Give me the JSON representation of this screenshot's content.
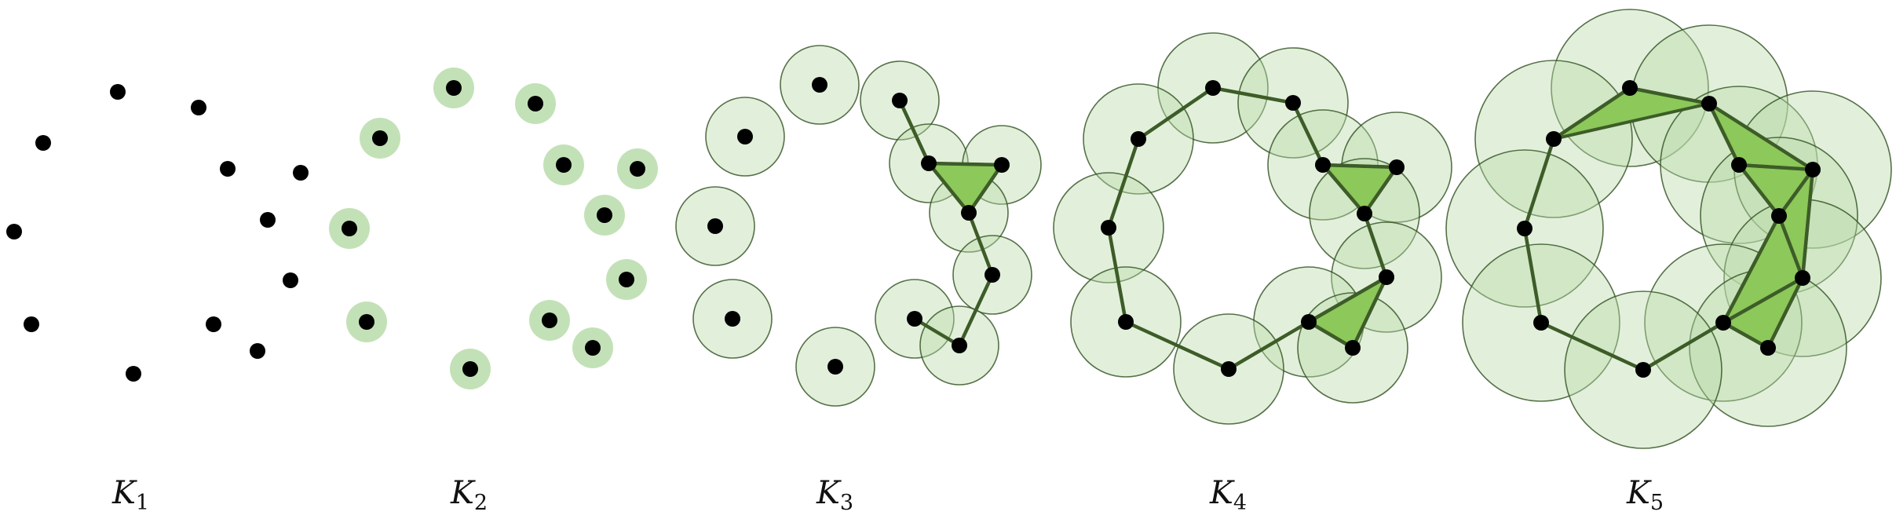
{
  "colors": {
    "point": "#000000",
    "ball_fill": "#b9dcaa",
    "ball_stroke": "#2f4f1f",
    "edge": "#3d5c28",
    "triangle_fill": "#8cc85a"
  },
  "panels": [
    {
      "label_main": "K",
      "label_sub": "1",
      "ball_radius": 0,
      "points": [
        [
          55,
          182
        ],
        [
          150,
          117
        ],
        [
          253,
          137
        ],
        [
          290,
          215
        ],
        [
          383,
          220
        ],
        [
          18,
          295
        ],
        [
          341,
          280
        ],
        [
          370,
          357
        ],
        [
          40,
          413
        ],
        [
          272,
          413
        ],
        [
          328,
          447
        ],
        [
          170,
          476
        ]
      ],
      "edges": [],
      "triangles": []
    },
    {
      "label_main": "K",
      "label_sub": "2",
      "ball_radius": 26,
      "points": [
        [
          578,
          112
        ],
        [
          682,
          132
        ],
        [
          484,
          176
        ],
        [
          718,
          210
        ],
        [
          812,
          215
        ],
        [
          445,
          291
        ],
        [
          770,
          274
        ],
        [
          798,
          356
        ],
        [
          467,
          410
        ],
        [
          700,
          408
        ],
        [
          755,
          443
        ],
        [
          599,
          470
        ]
      ],
      "edges": [],
      "triangles": []
    },
    {
      "label_main": "K",
      "label_sub": "3",
      "ball_radius": 50,
      "points": [
        [
          1044,
          108
        ],
        [
          1146,
          128
        ],
        [
          949,
          174
        ],
        [
          1183,
          208
        ],
        [
          1276,
          210
        ],
        [
          911,
          288
        ],
        [
          1234,
          271
        ],
        [
          1264,
          350
        ],
        [
          933,
          406
        ],
        [
          1165,
          406
        ],
        [
          1222,
          440
        ],
        [
          1064,
          467
        ]
      ],
      "edges": [
        [
          1,
          3
        ],
        [
          3,
          4
        ],
        [
          3,
          6
        ],
        [
          4,
          6
        ],
        [
          6,
          7
        ],
        [
          7,
          10
        ],
        [
          9,
          10
        ]
      ],
      "triangles": [
        [
          3,
          4,
          6
        ]
      ]
    },
    {
      "label_main": "K",
      "label_sub": "4",
      "ball_radius": 70,
      "points": [
        [
          1545,
          112
        ],
        [
          1647,
          131
        ],
        [
          1450,
          177
        ],
        [
          1685,
          210
        ],
        [
          1779,
          213
        ],
        [
          1412,
          290
        ],
        [
          1738,
          272
        ],
        [
          1766,
          353
        ],
        [
          1434,
          410
        ],
        [
          1667,
          410
        ],
        [
          1723,
          443
        ],
        [
          1565,
          470
        ]
      ],
      "edges": [
        [
          0,
          1
        ],
        [
          0,
          2
        ],
        [
          1,
          3
        ],
        [
          2,
          5
        ],
        [
          5,
          8
        ],
        [
          8,
          11
        ],
        [
          11,
          9
        ],
        [
          9,
          10
        ],
        [
          9,
          7
        ],
        [
          7,
          10
        ],
        [
          7,
          6
        ],
        [
          6,
          4
        ],
        [
          6,
          3
        ],
        [
          3,
          4
        ]
      ],
      "triangles": [
        [
          3,
          4,
          6
        ],
        [
          7,
          9,
          10
        ]
      ]
    },
    {
      "label_main": "K",
      "label_sub": "5",
      "ball_radius": 100,
      "points": [
        [
          2076,
          112
        ],
        [
          2177,
          132
        ],
        [
          1979,
          177
        ],
        [
          2215,
          210
        ],
        [
          2309,
          216
        ],
        [
          1942,
          291
        ],
        [
          2266,
          275
        ],
        [
          2296,
          354
        ],
        [
          1963,
          411
        ],
        [
          2195,
          411
        ],
        [
          2252,
          443
        ],
        [
          2093,
          471
        ]
      ],
      "edges": [
        [
          0,
          1
        ],
        [
          0,
          2
        ],
        [
          1,
          3
        ],
        [
          1,
          4
        ],
        [
          2,
          5
        ],
        [
          5,
          8
        ],
        [
          8,
          11
        ],
        [
          11,
          9
        ],
        [
          3,
          6
        ],
        [
          3,
          4
        ],
        [
          4,
          6
        ],
        [
          4,
          7
        ],
        [
          6,
          7
        ],
        [
          6,
          9
        ],
        [
          7,
          9
        ],
        [
          7,
          10
        ],
        [
          9,
          10
        ]
      ],
      "triangles": [
        [
          0,
          1,
          2
        ],
        [
          1,
          3,
          4
        ],
        [
          3,
          4,
          6
        ],
        [
          4,
          6,
          7
        ],
        [
          6,
          7,
          9
        ],
        [
          7,
          9,
          10
        ]
      ]
    }
  ]
}
